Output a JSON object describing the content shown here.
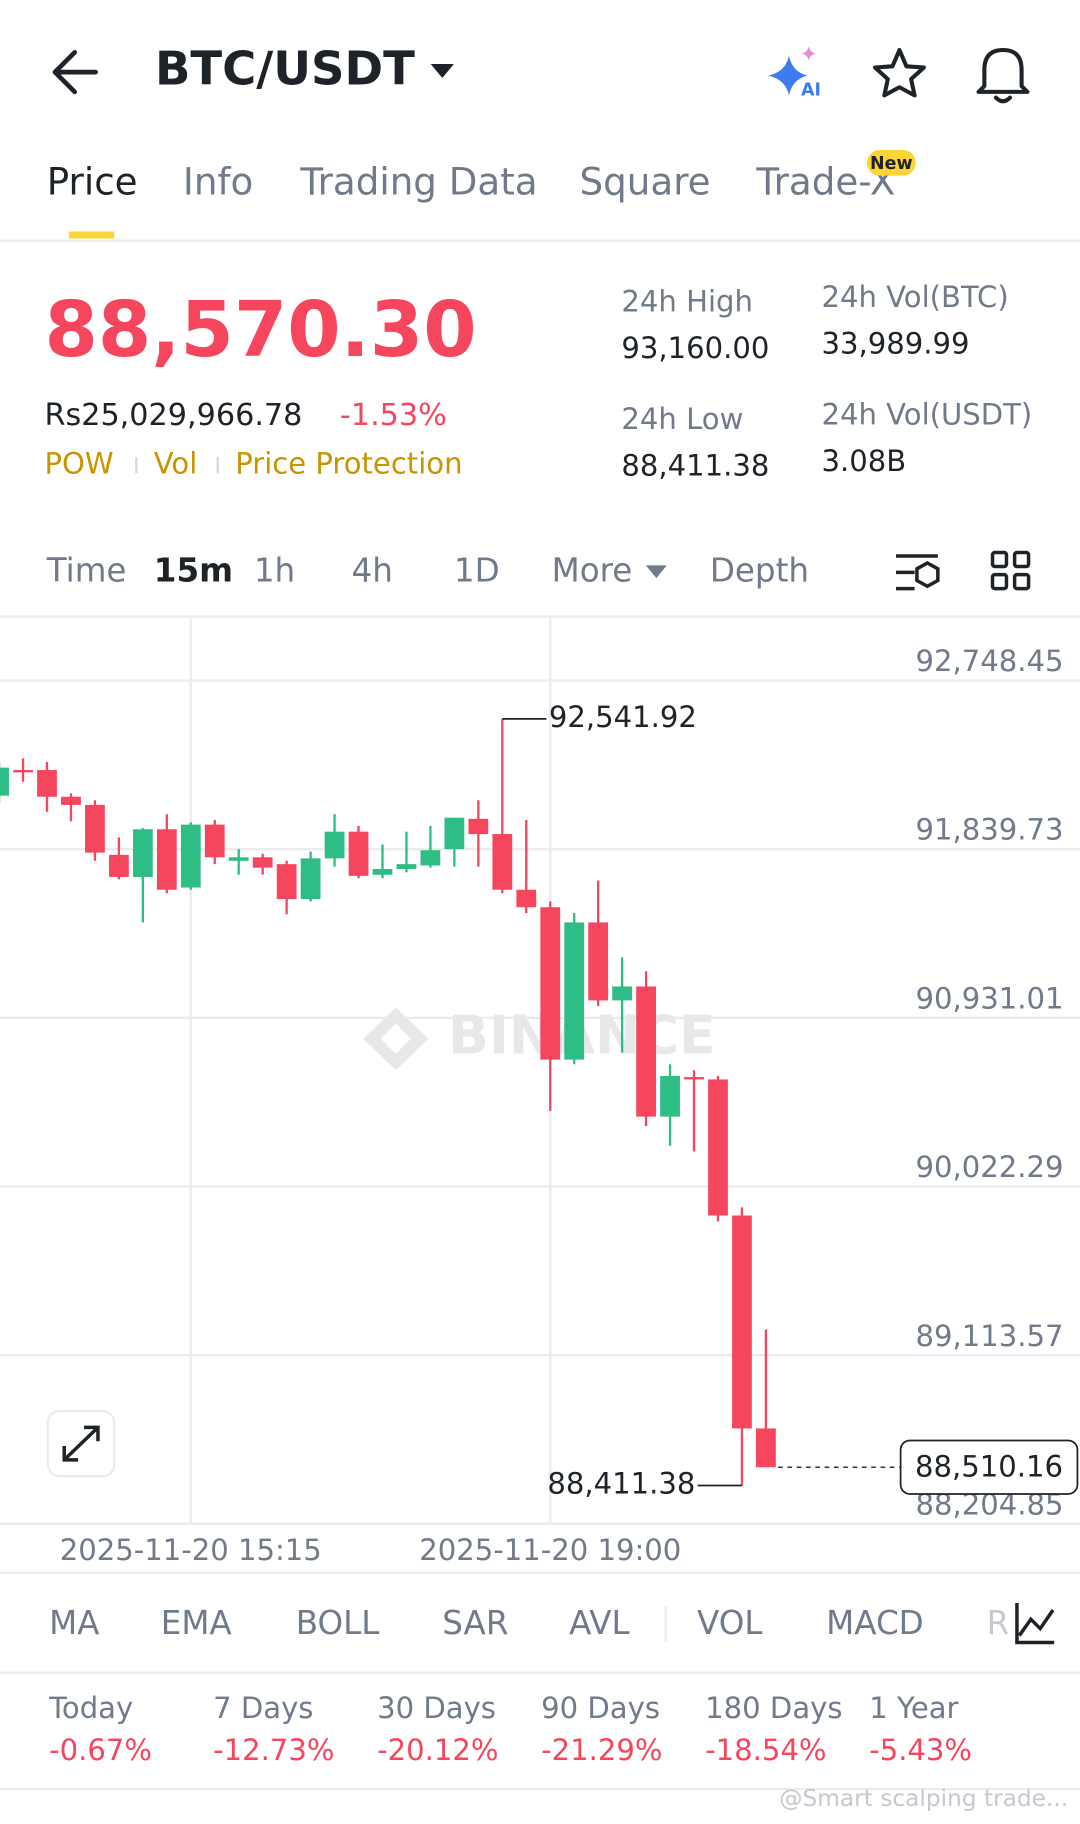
{
  "header": {
    "title": "BTC/USDT",
    "ai_badge": "AI"
  },
  "tabs": {
    "items": [
      "Price",
      "Info",
      "Trading Data",
      "Square",
      "Trade-X"
    ],
    "badge": "New"
  },
  "price": {
    "last": "88,570.30",
    "fiat": "Rs25,029,966.78",
    "change": "-1.53%",
    "tags": [
      "POW",
      "Vol",
      "Price Protection"
    ]
  },
  "stats": [
    {
      "label": "24h High",
      "value": "93,160.00"
    },
    {
      "label": "24h Low",
      "value": "88,411.38"
    },
    {
      "label": "24h Vol(BTC)",
      "value": "33,989.99"
    },
    {
      "label": "24h Vol(USDT)",
      "value": "3.08B"
    }
  ],
  "intervals": [
    "Time",
    "15m",
    "1h",
    "4h",
    "1D",
    "More",
    "Depth"
  ],
  "chart_data": {
    "type": "candlestick",
    "watermark": "BINANCE",
    "up_color": "#2ebd85",
    "down_color": "#f6465d",
    "categories": [
      null,
      null,
      null,
      null,
      null,
      null,
      null,
      null,
      "2025-11-20 15:15",
      null,
      null,
      null,
      null,
      null,
      null,
      null,
      null,
      null,
      null,
      null,
      null,
      null,
      null,
      "2025-11-20 19:00",
      null,
      null,
      null,
      null,
      null,
      null,
      null,
      null,
      null
    ],
    "open": [
      92128,
      92266,
      92266,
      92122,
      92078,
      91809,
      91690,
      91947,
      91633,
      91972,
      91777,
      91796,
      91759,
      91571,
      91790,
      91934,
      91702,
      91733,
      91752,
      91840,
      92003,
      91921,
      91621,
      91527,
      90706,
      91445,
      91025,
      91100,
      90399,
      90612,
      90599,
      89866,
      88719
    ],
    "high": [
      92310,
      92329,
      92310,
      92141,
      92103,
      91903,
      91953,
      92028,
      91984,
      91997,
      91840,
      91815,
      91777,
      91827,
      92028,
      91965,
      91865,
      91934,
      91965,
      92009,
      92103,
      92541.92,
      91997,
      91558,
      91495,
      91671,
      91257,
      91182,
      90681,
      90649,
      90618,
      89910,
      89252
    ],
    "low": [
      92091,
      92203,
      92041,
      91990,
      91777,
      91677,
      91445,
      91602,
      91621,
      91759,
      91702,
      91702,
      91489,
      91558,
      91746,
      91683,
      91683,
      91715,
      91740,
      91746,
      91746,
      91602,
      91495,
      90430,
      90681,
      90994,
      90743,
      90348,
      90242,
      90211,
      89834,
      88411.38,
      88510.16
    ],
    "close": [
      92279,
      92254,
      92122,
      92078,
      91821,
      91690,
      91947,
      91621,
      91972,
      91796,
      91796,
      91740,
      91571,
      91790,
      91934,
      91696,
      91733,
      91759,
      91834,
      92009,
      91921,
      91621,
      91527,
      90706,
      91445,
      91025,
      91100,
      90399,
      90618,
      90599,
      89866,
      88719,
      88510.16
    ],
    "ylim": [
      88204.85,
      93093
    ],
    "yticks": [
      {
        "value": 92748.45,
        "label": "92,748.45"
      },
      {
        "value": 91839.73,
        "label": "91,839.73"
      },
      {
        "value": 90931.01,
        "label": "90,931.01"
      },
      {
        "value": 90022.29,
        "label": "90,022.29"
      },
      {
        "value": 89113.57,
        "label": "89,113.57"
      },
      {
        "value": 88204.85,
        "label": "88,204.85"
      }
    ],
    "high_label": {
      "value": 92541.92,
      "label": "92,541.92"
    },
    "low_label": {
      "value": 88411.38,
      "label": "88,411.38"
    },
    "last_price": {
      "value": 88510.16,
      "label": "88,510.16"
    }
  },
  "indicators": [
    "MA",
    "EMA",
    "BOLL",
    "SAR",
    "AVL",
    "VOL",
    "MACD",
    "R"
  ],
  "performance": [
    {
      "label": "Today",
      "value": "-0.67%"
    },
    {
      "label": "7 Days",
      "value": "-12.73%"
    },
    {
      "label": "30 Days",
      "value": "-20.12%"
    },
    {
      "label": "90 Days",
      "value": "-21.29%"
    },
    {
      "label": "180 Days",
      "value": "-18.54%"
    },
    {
      "label": "1 Year",
      "value": "-5.43%"
    }
  ],
  "footer_watermark": "@Smart scalping trade..."
}
